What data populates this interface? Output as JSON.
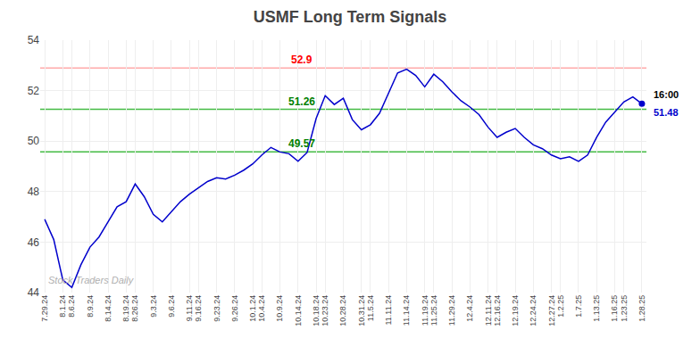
{
  "chart_data": {
    "type": "line",
    "title": "USMF Long Term Signals",
    "categories": [
      "7.29.24",
      null,
      "8.1.24",
      "8.6.24",
      null,
      "8.9.24",
      null,
      "8.14.24",
      null,
      "8.19.24",
      "8.26.24",
      null,
      "9.3.24",
      null,
      "9.6.24",
      null,
      "9.11.24",
      "9.16.24",
      null,
      "9.23.24",
      null,
      "9.26.24",
      null,
      "10.1.24",
      "10.4.24",
      null,
      "10.9.24",
      null,
      "10.14.24",
      null,
      "10.18.24",
      "10.23.24",
      null,
      "10.28.24",
      null,
      "10.31.24",
      "11.5.24",
      null,
      "11.11.24",
      null,
      "11.14.24",
      null,
      "11.19.24",
      "11.25.24",
      null,
      "11.29.24",
      null,
      "12.4.24",
      null,
      "12.11.24",
      "12.16.24",
      null,
      "12.19.24",
      null,
      "12.24.24",
      null,
      "12.27.24",
      "1.2.25",
      null,
      "1.7.25",
      null,
      "1.13.25",
      null,
      "1.16.25",
      "1.23.25",
      null,
      "1.28.25"
    ],
    "series": [
      {
        "name": "USMF",
        "color": "#0000cc",
        "values": [
          46.9,
          46.1,
          44.5,
          44.2,
          45.1,
          45.8,
          46.2,
          46.8,
          47.4,
          47.6,
          48.3,
          47.8,
          47.1,
          46.8,
          47.2,
          47.6,
          47.9,
          48.15,
          48.4,
          48.55,
          48.5,
          48.65,
          48.85,
          49.1,
          49.45,
          49.75,
          49.57,
          49.5,
          49.2,
          49.55,
          50.9,
          51.8,
          51.45,
          51.7,
          50.85,
          50.45,
          50.65,
          51.1,
          51.9,
          52.7,
          52.85,
          52.6,
          52.15,
          52.65,
          52.35,
          51.95,
          51.6,
          51.35,
          51.05,
          50.55,
          50.15,
          50.35,
          50.5,
          50.15,
          49.85,
          49.7,
          49.45,
          49.3,
          49.38,
          49.2,
          49.45,
          50.15,
          50.75,
          51.15,
          51.55,
          51.75,
          51.48
        ]
      }
    ],
    "hlines": [
      {
        "value": 52.9,
        "label": "52.9",
        "color": "#ffaaaa",
        "label_color": "red"
      },
      {
        "value": 51.26,
        "label": "51.26",
        "color": "#44bb44",
        "label_color": "green"
      },
      {
        "value": 49.57,
        "label": "49.57",
        "color": "#44bb44",
        "label_color": "green"
      }
    ],
    "annotations": [
      {
        "text": "16:00",
        "color": "#000000"
      },
      {
        "text": "51.48",
        "value": 51.48,
        "color": "#0000cc"
      }
    ],
    "watermark": "Stock Traders Daily",
    "ylim": [
      44,
      54
    ],
    "yticks": [
      44,
      46,
      48,
      50,
      52,
      54
    ],
    "grid": true
  }
}
